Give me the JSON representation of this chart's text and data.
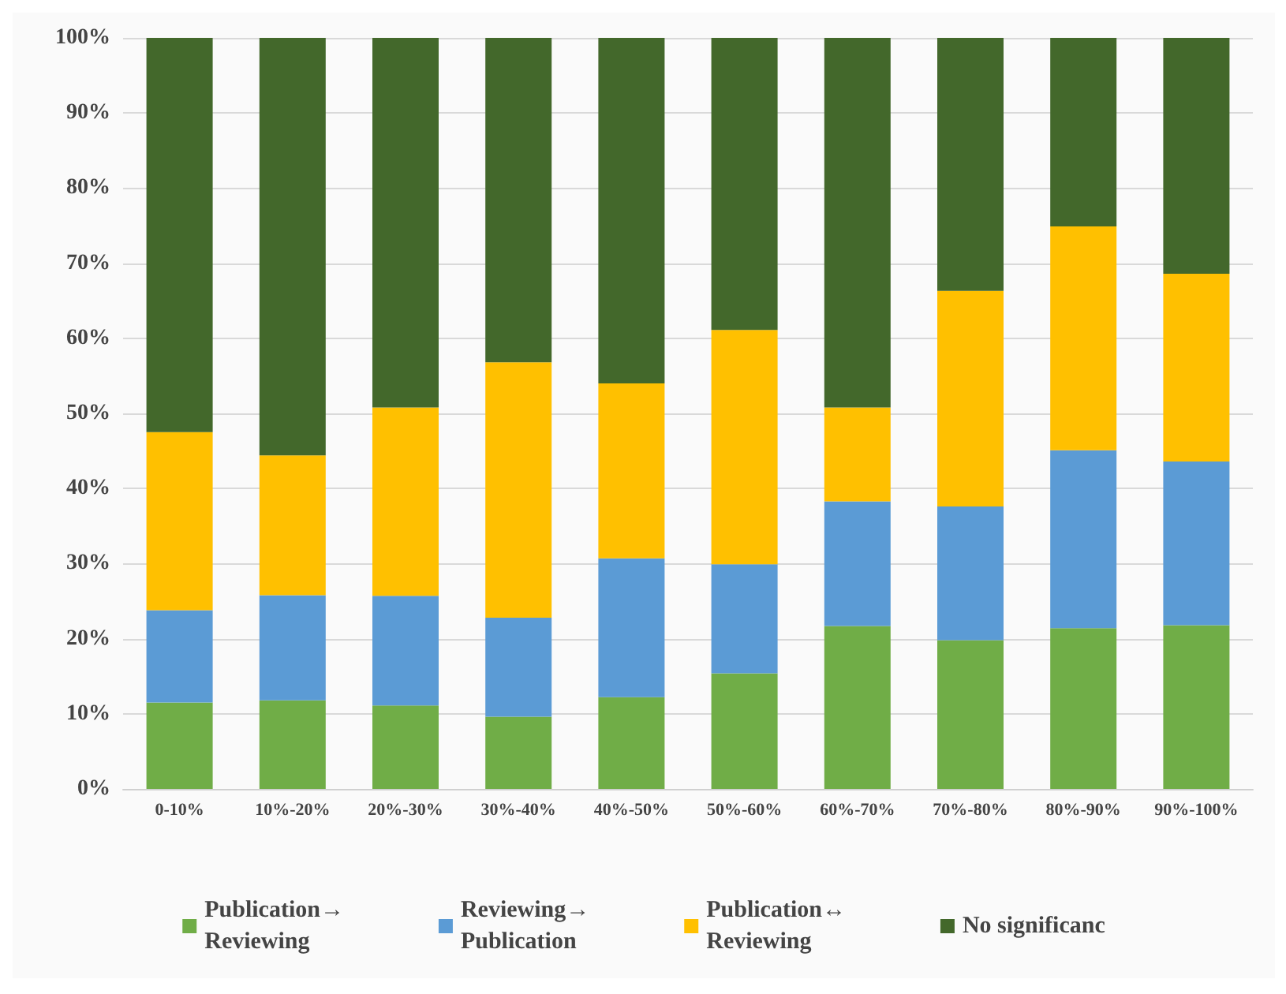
{
  "chart_data": {
    "type": "bar",
    "stacked": true,
    "categories": [
      "0-10%",
      "10%-20%",
      "20%-30%",
      "30%-40%",
      "40%-50%",
      "50%-60%",
      "60%-70%",
      "70%-80%",
      "80%-90%",
      "90%-100%"
    ],
    "series": [
      {
        "name": "Publication→\nReviewing",
        "color": "#70ad47",
        "values": [
          11.5,
          11.8,
          11.1,
          9.6,
          12.2,
          15.4,
          21.7,
          19.8,
          21.4,
          21.8
        ]
      },
      {
        "name": "Reviewing→\nPublication",
        "color": "#5b9bd5",
        "values": [
          12.3,
          14.0,
          14.6,
          13.2,
          18.5,
          14.5,
          16.6,
          17.8,
          23.7,
          21.8
        ]
      },
      {
        "name": "Publication↔\nReviewing",
        "color": "#ffc000",
        "values": [
          23.7,
          18.6,
          25.1,
          34.0,
          23.3,
          31.2,
          12.5,
          28.7,
          29.8,
          25.0
        ]
      },
      {
        "name": "No significanc",
        "color": "#43682b",
        "values": [
          52.5,
          55.6,
          49.2,
          43.2,
          46.0,
          38.9,
          49.2,
          33.7,
          25.1,
          31.4
        ]
      }
    ],
    "ylim": [
      0,
      100
    ],
    "yticks": [
      {
        "value": 0,
        "label": "0%"
      },
      {
        "value": 10,
        "label": "10%"
      },
      {
        "value": 20,
        "label": "20%"
      },
      {
        "value": 30,
        "label": "30%"
      },
      {
        "value": 40,
        "label": "40%"
      },
      {
        "value": 50,
        "label": "50%"
      },
      {
        "value": 60,
        "label": "60%"
      },
      {
        "value": 70,
        "label": "70%"
      },
      {
        "value": 80,
        "label": "80%"
      },
      {
        "value": 90,
        "label": "90%"
      },
      {
        "value": 100,
        "label": "100%"
      }
    ],
    "grid": "y",
    "legend": "bottom"
  }
}
